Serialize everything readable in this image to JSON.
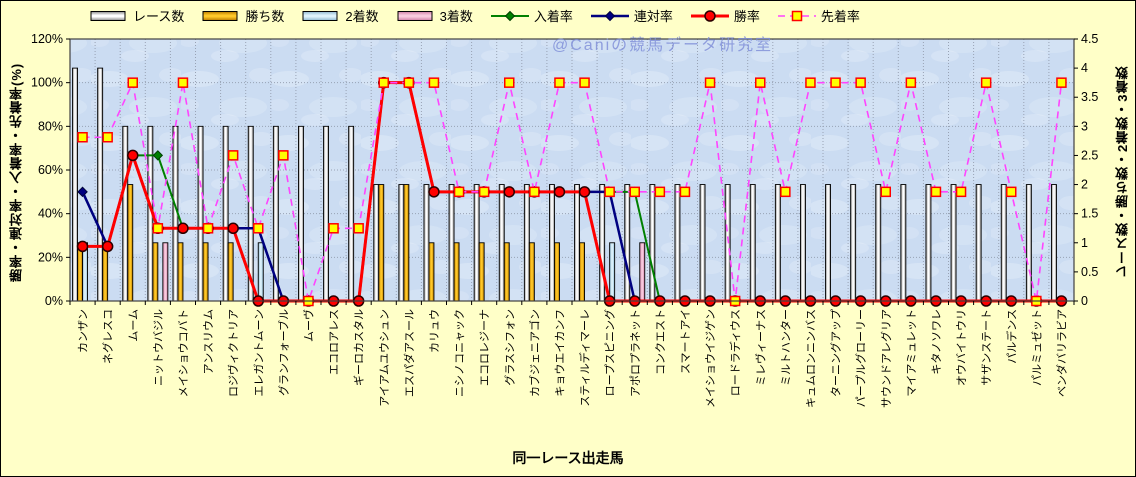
{
  "watermark": "@Caniの競馬データ研究室",
  "colors": {
    "figure_bg": "#FFFFC8",
    "plot_bg": "#CBDCF2",
    "grid": "#98A2B4",
    "plot_border": "#404040",
    "win_rate_line": "#FF0000",
    "quinella_line": "#000080",
    "place_line": "#008000",
    "first_finish_line": "#FF44FF",
    "first_finish_marker": "#FFFF00"
  },
  "chart_data": {
    "type": "bar+line combo",
    "xlabel": "同一レース出走馬",
    "legend_position": "top",
    "grid": true,
    "categories": [
      "カンザン",
      "ネグレスコ",
      "ムーム",
      "ニットウバジル",
      "メイショウコバト",
      "アンスリウム",
      "ロジヴィクトリア",
      "エレガントムーン",
      "グランフォーブル",
      "ムーヴ",
      "エコロアレス",
      "ギーロカスタル",
      "アイアムユウシュン",
      "エスパダアスール",
      "カリュウ",
      "ニシノコニャック",
      "エコロレジーナ",
      "グラスシフォン",
      "カブジェニアゴン",
      "キョウエイカンフ",
      "スティルディマーレ",
      "ロープスピニング",
      "アポロプラネット",
      "コンクエスト",
      "スマートアイ",
      "メイショウイジゲン",
      "ロードラディウス",
      "ミレヴィーナス",
      "ミルトハンター",
      "キュムロンニンバス",
      "ターニングアップ",
      "パープルグローリー",
      "サウンドアレグリア",
      "マイアミュレット",
      "キタノソワレ",
      "オウバイトウリ",
      "サザンステート",
      "パルデンス",
      "パルミュゼット",
      "ベンダバリラビア"
    ],
    "y_left": {
      "label": "勝率・連対率・入着率・先着率(%)",
      "min": 0,
      "max": 120,
      "step": 20,
      "ticks": [
        "0%",
        "20%",
        "40%",
        "60%",
        "80%",
        "100%",
        "120%"
      ]
    },
    "y_right": {
      "label": "レース数・勝ち数・2着数・3着数",
      "min": 0,
      "max": 4.5,
      "step": 0.5,
      "ticks": [
        "0",
        "0.5",
        "1",
        "1.5",
        "2",
        "2.5",
        "3",
        "3.5",
        "4",
        "4.5"
      ]
    },
    "bar_series": [
      {
        "name": "レース数",
        "data_name": "race-count",
        "edge": "#8A8A8A",
        "mid": "#FFFFFF",
        "values": [
          4,
          4,
          3,
          3,
          3,
          3,
          3,
          3,
          3,
          3,
          3,
          3,
          2,
          2,
          2,
          2,
          2,
          2,
          2,
          2,
          2,
          2,
          2,
          2,
          2,
          2,
          2,
          2,
          2,
          2,
          2,
          2,
          2,
          2,
          2,
          2,
          2,
          2,
          2,
          2
        ]
      },
      {
        "name": "勝ち数",
        "data_name": "win-count",
        "edge": "#B87A00",
        "mid": "#FFC828",
        "values": [
          1,
          1,
          2,
          1,
          1,
          1,
          1,
          0,
          0,
          0,
          0,
          0,
          2,
          2,
          1,
          1,
          1,
          1,
          1,
          1,
          1,
          0,
          0,
          0,
          0,
          0,
          0,
          0,
          0,
          0,
          0,
          0,
          0,
          0,
          0,
          0,
          0,
          0,
          0,
          0
        ]
      },
      {
        "name": "2着数",
        "data_name": "second-count",
        "edge": "#8FB8D0",
        "mid": "#DDF2FB",
        "values": [
          1,
          0,
          0,
          0,
          0,
          0,
          0,
          1,
          0,
          0,
          0,
          0,
          0,
          0,
          0,
          0,
          0,
          0,
          0,
          0,
          0,
          1,
          0,
          0,
          0,
          0,
          0,
          0,
          0,
          0,
          0,
          0,
          0,
          0,
          0,
          0,
          0,
          0,
          0,
          0
        ]
      },
      {
        "name": "3着数",
        "data_name": "third-count",
        "edge": "#D080A8",
        "mid": "#F9CADE",
        "values": [
          0,
          0,
          0,
          1,
          0,
          0,
          0,
          0,
          0,
          0,
          0,
          0,
          0,
          0,
          0,
          0,
          0,
          0,
          0,
          0,
          0,
          0,
          1,
          0,
          0,
          0,
          0,
          0,
          0,
          0,
          0,
          0,
          0,
          0,
          0,
          0,
          0,
          0,
          0,
          0
        ]
      }
    ],
    "line_series": [
      {
        "name": "入着率",
        "data_name": "place-rate",
        "color": "#008000",
        "width": 2,
        "marker": "diamond",
        "marker_fill": "#008000",
        "marker_stroke": "#004000",
        "dash": null,
        "values": [
          50,
          25,
          66.7,
          66.7,
          33.3,
          33.3,
          33.3,
          33.3,
          0,
          0,
          0,
          0,
          100,
          100,
          50,
          50,
          50,
          50,
          50,
          50,
          50,
          50,
          50,
          0,
          0,
          0,
          0,
          0,
          0,
          0,
          0,
          0,
          0,
          0,
          0,
          0,
          0,
          0,
          0,
          0
        ]
      },
      {
        "name": "連対率",
        "data_name": "quinella-rate",
        "color": "#000080",
        "width": 2.5,
        "marker": "diamond",
        "marker_fill": "#000080",
        "marker_stroke": "#000040",
        "dash": null,
        "values": [
          50,
          25,
          66.7,
          33.3,
          33.3,
          33.3,
          33.3,
          33.3,
          0,
          0,
          0,
          0,
          100,
          100,
          50,
          50,
          50,
          50,
          50,
          50,
          50,
          50,
          0,
          0,
          0,
          0,
          0,
          0,
          0,
          0,
          0,
          0,
          0,
          0,
          0,
          0,
          0,
          0,
          0,
          0
        ]
      },
      {
        "name": "勝率",
        "data_name": "win-rate",
        "color": "#FF0000",
        "width": 3,
        "marker": "circle",
        "marker_fill": "#FF0000",
        "marker_stroke": "#2A0000",
        "dash": null,
        "values": [
          25,
          25,
          66.7,
          33.3,
          33.3,
          33.3,
          33.3,
          0,
          0,
          0,
          0,
          0,
          100,
          100,
          50,
          50,
          50,
          50,
          50,
          50,
          50,
          0,
          0,
          0,
          0,
          0,
          0,
          0,
          0,
          0,
          0,
          0,
          0,
          0,
          0,
          0,
          0,
          0,
          0,
          0
        ]
      },
      {
        "name": "先着率",
        "data_name": "first-finish-rate",
        "color": "#FF44FF",
        "width": 1.6,
        "marker": "square",
        "marker_fill": "#FFFF00",
        "marker_stroke": "#FF0000",
        "dash": "7 5",
        "values": [
          75,
          75,
          100,
          33.3,
          100,
          33.3,
          66.7,
          33.3,
          66.7,
          0,
          33.3,
          33.3,
          100,
          100,
          100,
          50,
          50,
          100,
          50,
          100,
          100,
          50,
          50,
          50,
          50,
          100,
          0,
          100,
          50,
          100,
          100,
          100,
          50,
          100,
          50,
          50,
          100,
          50,
          0,
          100
        ]
      }
    ]
  }
}
